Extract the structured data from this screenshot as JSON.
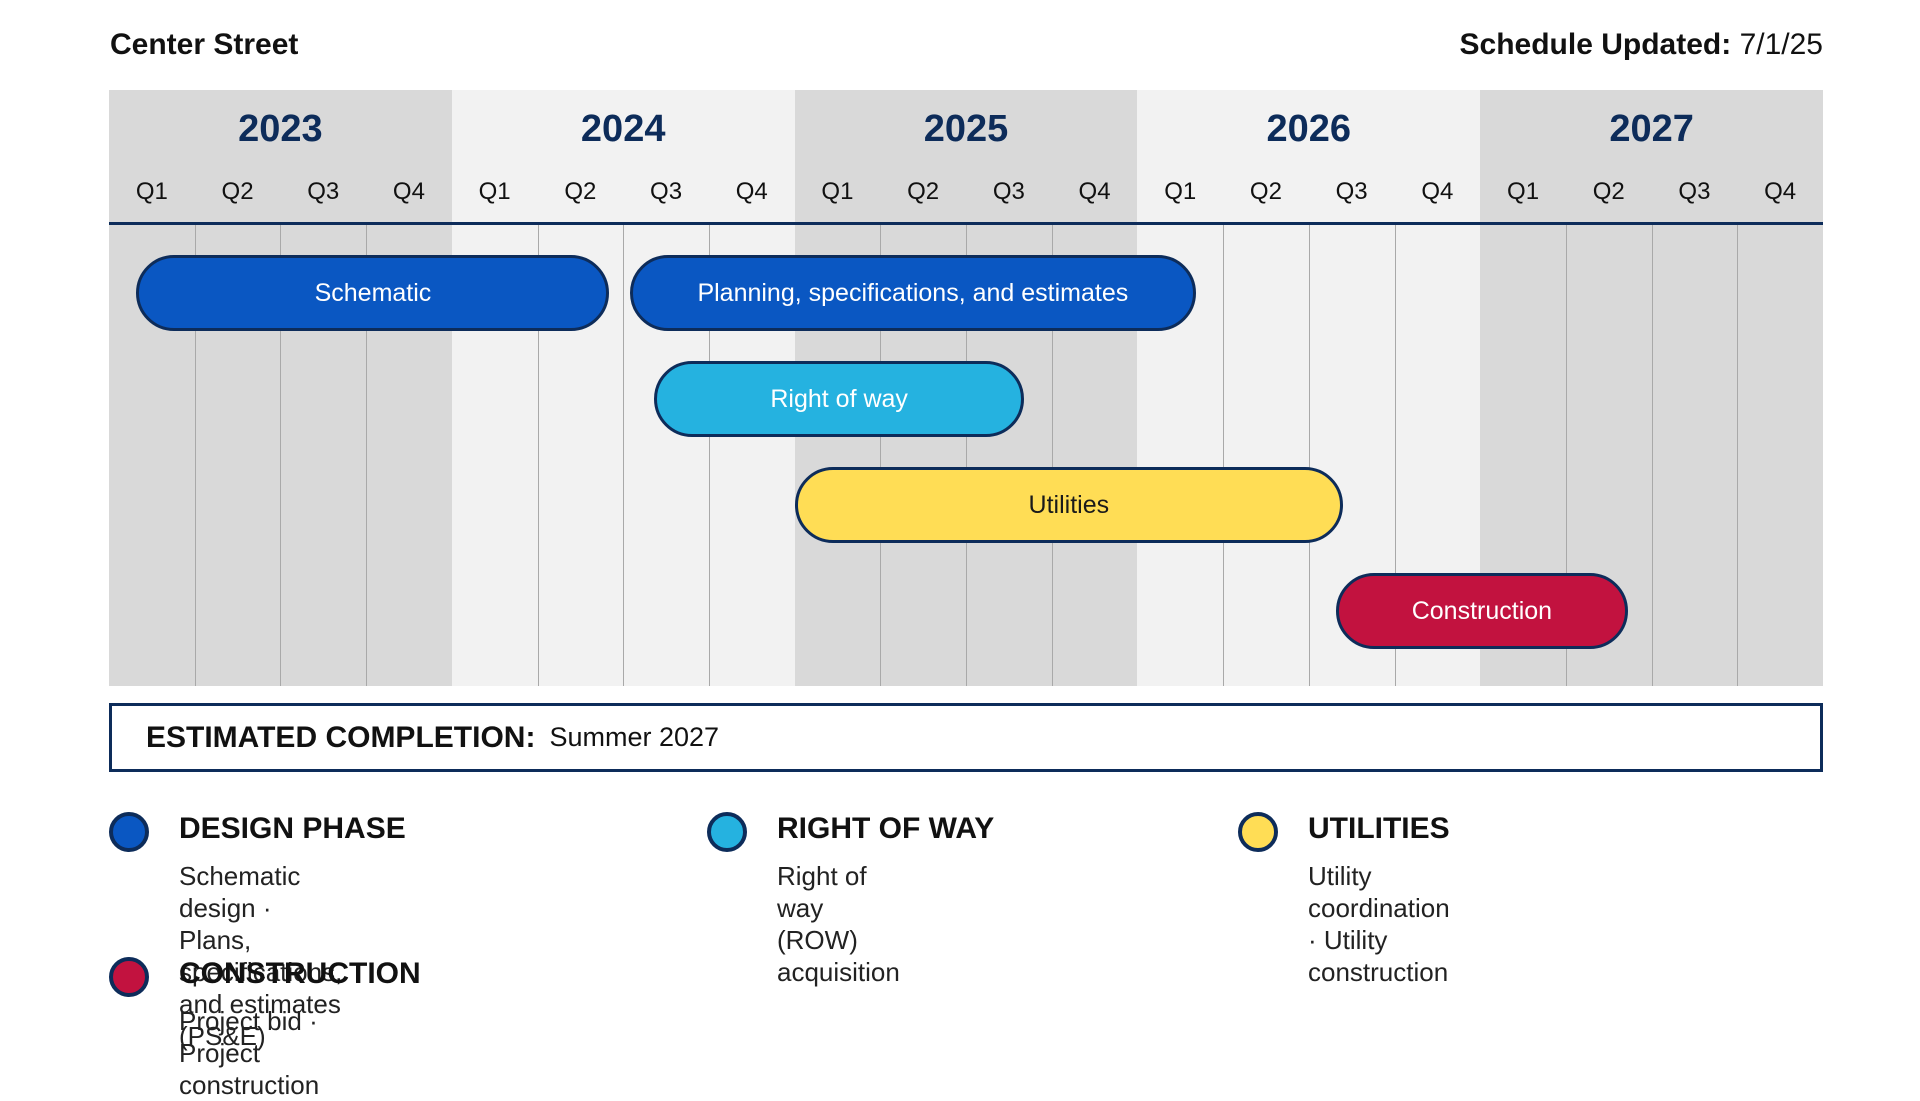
{
  "header": {
    "project": "Center Street",
    "updated_label": "Schedule Updated:",
    "updated_value": "7/1/25"
  },
  "chart_data": {
    "type": "gantt",
    "years": [
      "2023",
      "2024",
      "2025",
      "2026",
      "2027"
    ],
    "quarters": [
      "Q1",
      "Q2",
      "Q3",
      "Q4"
    ],
    "tasks": [
      {
        "name": "Schematic",
        "start": 2023.08,
        "end": 2024.46,
        "row": 0,
        "color": "#0a57c2",
        "text_color": "#ffffff"
      },
      {
        "name": "Planning, specifications, and estimates",
        "start": 2024.52,
        "end": 2026.17,
        "row": 0,
        "color": "#0a57c2",
        "text_color": "#ffffff"
      },
      {
        "name": "Right of way",
        "start": 2024.59,
        "end": 2025.67,
        "row": 1,
        "color": "#25b2e0",
        "text_color": "#ffffff"
      },
      {
        "name": "Utilities",
        "start": 2025.0,
        "end": 2026.6,
        "row": 2,
        "color": "#ffdd55",
        "text_color": "#1a1a1a"
      },
      {
        "name": "Construction",
        "start": 2026.58,
        "end": 2027.43,
        "row": 3,
        "color": "#c2123f",
        "text_color": "#ffffff"
      }
    ]
  },
  "completion": {
    "label": "ESTIMATED COMPLETION:",
    "value": "Summer 2027"
  },
  "legend": [
    {
      "title": "DESIGN PHASE",
      "color": "#0a57c2",
      "lines": [
        "Schematic design   ·   Plans,",
        "specifications,  and estimates (PS&E)"
      ]
    },
    {
      "title": "RIGHT OF WAY",
      "color": "#25b2e0",
      "lines": [
        "Right of way (ROW) acquisition"
      ]
    },
    {
      "title": "UTILITIES",
      "color": "#ffdd55",
      "lines": [
        "Utility coordination · Utility construction"
      ]
    },
    {
      "title": "CONSTRUCTION",
      "color": "#c2123f",
      "lines": [
        "Project bid   ·   Project construction"
      ]
    }
  ]
}
